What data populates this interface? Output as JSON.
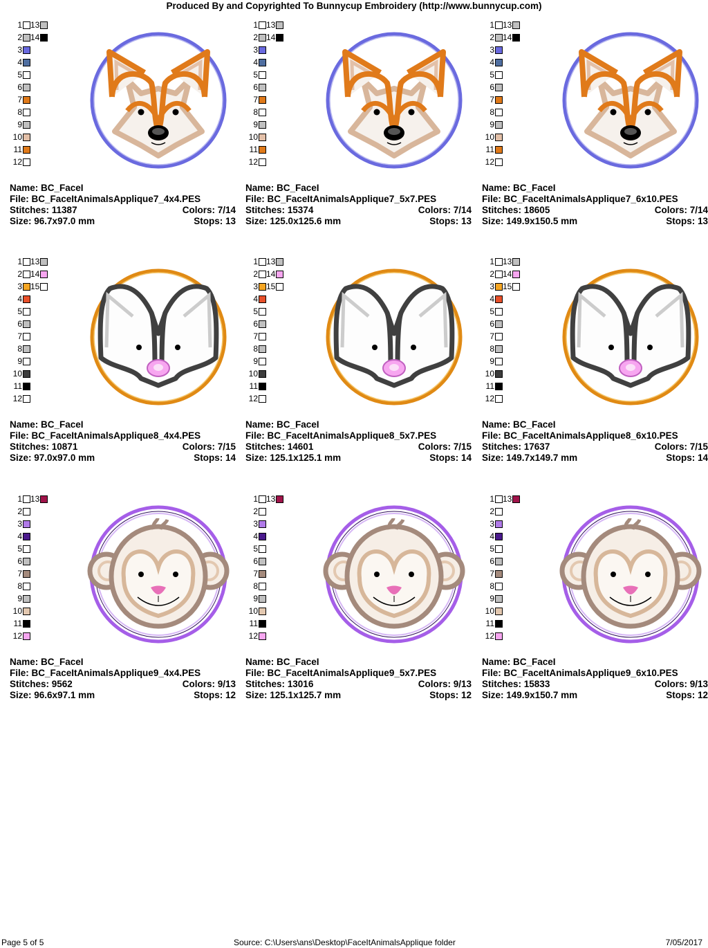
{
  "header": {
    "title": "Produced By and Copyrighted To Bunnycup Embroidery (http://www.bunnycup.com)"
  },
  "labels": {
    "name": "Name:",
    "file": "File:",
    "stitches": "Stitches:",
    "colors": "Colors:",
    "size": "Size:",
    "stops": "Stops:"
  },
  "rows": [
    {
      "animal": "fox",
      "palette": {
        "col1": [
          {
            "n": "1",
            "c": "#ffffff"
          },
          {
            "n": "2",
            "c": "#c0c0c0"
          },
          {
            "n": "3",
            "c": "#6a6adf"
          },
          {
            "n": "4",
            "c": "#4f6ea0"
          },
          {
            "n": "5",
            "c": "#ffffff"
          },
          {
            "n": "6",
            "c": "#c0c0c0"
          },
          {
            "n": "7",
            "c": "#e07a1a"
          },
          {
            "n": "8",
            "c": "#ffffff"
          },
          {
            "n": "9",
            "c": "#c0c0c0"
          },
          {
            "n": "10",
            "c": "#e3c0a8"
          },
          {
            "n": "11",
            "c": "#e07a1a"
          },
          {
            "n": "12",
            "c": "#ffffff"
          }
        ],
        "col2": [
          {
            "n": "13",
            "c": "#c0c0c0"
          },
          {
            "n": "14",
            "c": "#000000"
          }
        ]
      },
      "designs": [
        {
          "name": "BC_FaceI",
          "file": "BC_FaceItAnimalsApplique7_4x4.PES",
          "stitches": "11387",
          "colors": "7/14",
          "size": "96.7x97.0 mm",
          "stops": "13"
        },
        {
          "name": "BC_FaceI",
          "file": "BC_FaceItAnimalsApplique7_5x7.PES",
          "stitches": "15374",
          "colors": "7/14",
          "size": "125.0x125.6 mm",
          "stops": "13"
        },
        {
          "name": "BC_FaceI",
          "file": "BC_FaceItAnimalsApplique7_6x10.PES",
          "stitches": "18605",
          "colors": "7/14",
          "size": "149.9x150.5 mm",
          "stops": "13"
        }
      ]
    },
    {
      "animal": "skunk",
      "palette": {
        "col1": [
          {
            "n": "1",
            "c": "#ffffff"
          },
          {
            "n": "2",
            "c": "#ffffff"
          },
          {
            "n": "3",
            "c": "#f5a623"
          },
          {
            "n": "4",
            "c": "#e8502a"
          },
          {
            "n": "5",
            "c": "#ffffff"
          },
          {
            "n": "6",
            "c": "#c0c0c0"
          },
          {
            "n": "7",
            "c": "#ffffff"
          },
          {
            "n": "8",
            "c": "#c0c0c0"
          },
          {
            "n": "9",
            "c": "#ffffff"
          },
          {
            "n": "10",
            "c": "#3c3c3c"
          },
          {
            "n": "11",
            "c": "#000000"
          },
          {
            "n": "12",
            "c": "#ffffff"
          }
        ],
        "col2": [
          {
            "n": "13",
            "c": "#c0c0c0"
          },
          {
            "n": "14",
            "c": "#f7a6f0"
          },
          {
            "n": "15",
            "c": "#ffffff"
          }
        ]
      },
      "designs": [
        {
          "name": "BC_FaceI",
          "file": "BC_FaceItAnimalsApplique8_4x4.PES",
          "stitches": "10871",
          "colors": "7/15",
          "size": "97.0x97.0 mm",
          "stops": "14"
        },
        {
          "name": "BC_FaceI",
          "file": "BC_FaceItAnimalsApplique8_5x7.PES",
          "stitches": "14601",
          "colors": "7/15",
          "size": "125.1x125.1 mm",
          "stops": "14"
        },
        {
          "name": "BC_FaceI",
          "file": "BC_FaceItAnimalsApplique8_6x10.PES",
          "stitches": "17637",
          "colors": "7/15",
          "size": "149.7x149.7 mm",
          "stops": "14"
        }
      ]
    },
    {
      "animal": "monkey",
      "palette": {
        "col1": [
          {
            "n": "1",
            "c": "#ffffff"
          },
          {
            "n": "2",
            "c": "#ffffff"
          },
          {
            "n": "3",
            "c": "#b07ae8"
          },
          {
            "n": "4",
            "c": "#4a1a8c"
          },
          {
            "n": "5",
            "c": "#ffffff"
          },
          {
            "n": "6",
            "c": "#c0c0c0"
          },
          {
            "n": "7",
            "c": "#a48a7c"
          },
          {
            "n": "8",
            "c": "#ffffff"
          },
          {
            "n": "9",
            "c": "#c0c0c0"
          },
          {
            "n": "10",
            "c": "#e3c8b0"
          },
          {
            "n": "11",
            "c": "#000000"
          },
          {
            "n": "12",
            "c": "#f7a6f0"
          }
        ],
        "col2": [
          {
            "n": "13",
            "c": "#a0144a"
          }
        ]
      },
      "designs": [
        {
          "name": "BC_FaceI",
          "file": "BC_FaceItAnimalsApplique9_4x4.PES",
          "stitches": "9562",
          "colors": "9/13",
          "size": "96.6x97.1 mm",
          "stops": "12"
        },
        {
          "name": "BC_FaceI",
          "file": "BC_FaceItAnimalsApplique9_5x7.PES",
          "stitches": "13016",
          "colors": "9/13",
          "size": "125.1x125.7 mm",
          "stops": "12"
        },
        {
          "name": "BC_FaceI",
          "file": "BC_FaceItAnimalsApplique9_6x10.PES",
          "stitches": "15833",
          "colors": "9/13",
          "size": "149.9x150.7 mm",
          "stops": "12"
        }
      ]
    }
  ],
  "footer": {
    "page": "Page 5 of 5",
    "source": "Source: C:\\Users\\ans\\Desktop\\FaceItAnimalsApplique folder",
    "date": "7/05/2017"
  }
}
